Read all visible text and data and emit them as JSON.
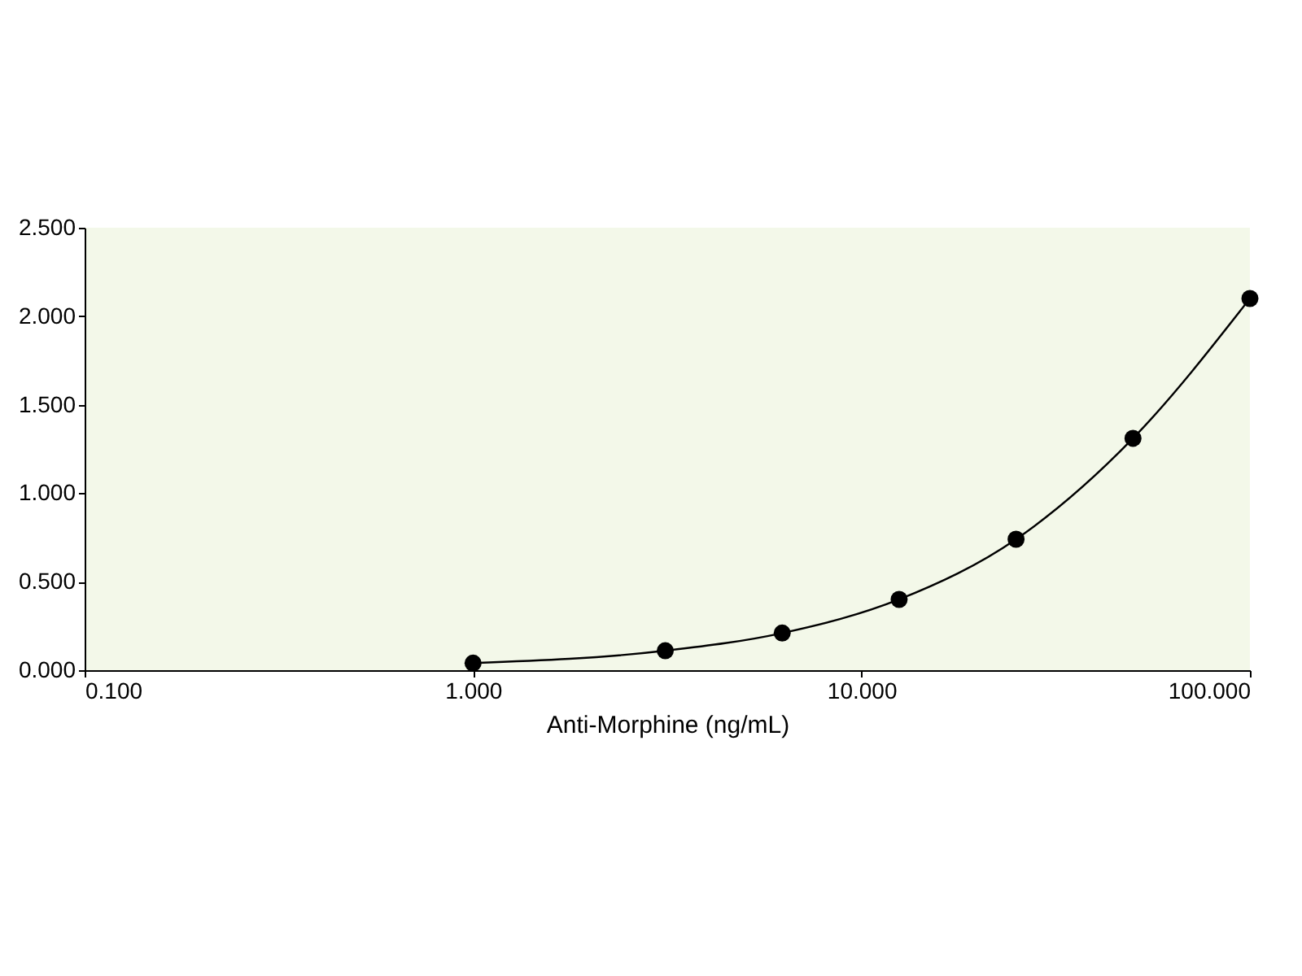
{
  "chart_data": {
    "type": "scatter",
    "xlabel": "Anti-Morphine (ng/mL)",
    "log": "x",
    "x": [
      1,
      3.125,
      6.25,
      12.5,
      25,
      50,
      100
    ],
    "series": [
      {
        "color": "#000000",
        "marker": "circle",
        "values": [
          0.04,
          0.11,
          0.21,
          0.4,
          0.74,
          1.31,
          2.1
        ]
      },
      {
        "type": "line",
        "color": "#000000",
        "line_style": "solid",
        "x": [
          1,
          3.125,
          6.25,
          12.5,
          25,
          50,
          100
        ],
        "values": [
          0.04,
          0.11,
          0.21,
          0.4,
          0.74,
          1.31,
          2.1
        ]
      }
    ],
    "xlim": [
      0.1,
      100
    ],
    "ylim": [
      0,
      2.5
    ],
    "xticks": [
      {
        "value": 0.1,
        "label": "0.100"
      },
      {
        "value": 1,
        "label": "1.000"
      },
      {
        "value": 10,
        "label": "10.000"
      },
      {
        "value": 100,
        "label": "100.000"
      }
    ],
    "yticks": [
      {
        "value": 0,
        "label": "0.000"
      },
      {
        "value": 0.5,
        "label": "0.500"
      },
      {
        "value": 1,
        "label": "1.000"
      },
      {
        "value": 1.5,
        "label": "1.500"
      },
      {
        "value": 2,
        "label": "2.000"
      },
      {
        "value": 2.5,
        "label": "2.500"
      }
    ],
    "grid": false
  }
}
